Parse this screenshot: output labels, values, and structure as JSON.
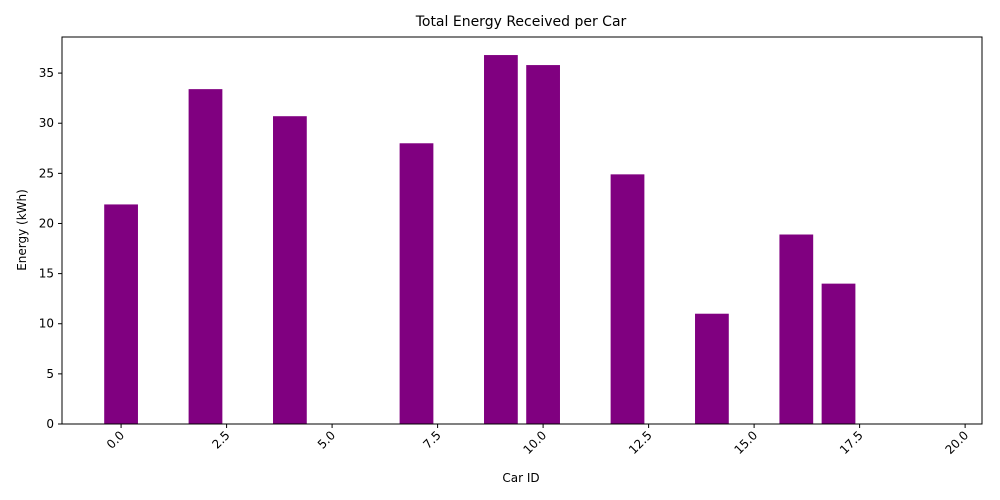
{
  "chart_data": {
    "type": "bar",
    "title": "Total Energy Received per Car",
    "xlabel": "Car ID",
    "ylabel": "Energy (kWh)",
    "x": [
      0,
      2,
      4,
      7,
      9,
      10,
      12,
      14,
      16,
      17
    ],
    "values": [
      21.9,
      33.4,
      30.7,
      28.0,
      36.8,
      35.8,
      24.9,
      11.0,
      18.9,
      14.0
    ],
    "bar_width": 0.8,
    "xlim": [
      -1.4,
      20.4
    ],
    "ylim": [
      0,
      38.6
    ],
    "xticks": [
      "0.0",
      "2.5",
      "5.0",
      "7.5",
      "10.0",
      "12.5",
      "15.0",
      "17.5",
      "20.0"
    ],
    "yticks": [
      "0",
      "5",
      "10",
      "15",
      "20",
      "25",
      "30",
      "35"
    ],
    "xtick_rotation": 45,
    "grid": false,
    "legend": "none",
    "bar_color": "#800080"
  }
}
